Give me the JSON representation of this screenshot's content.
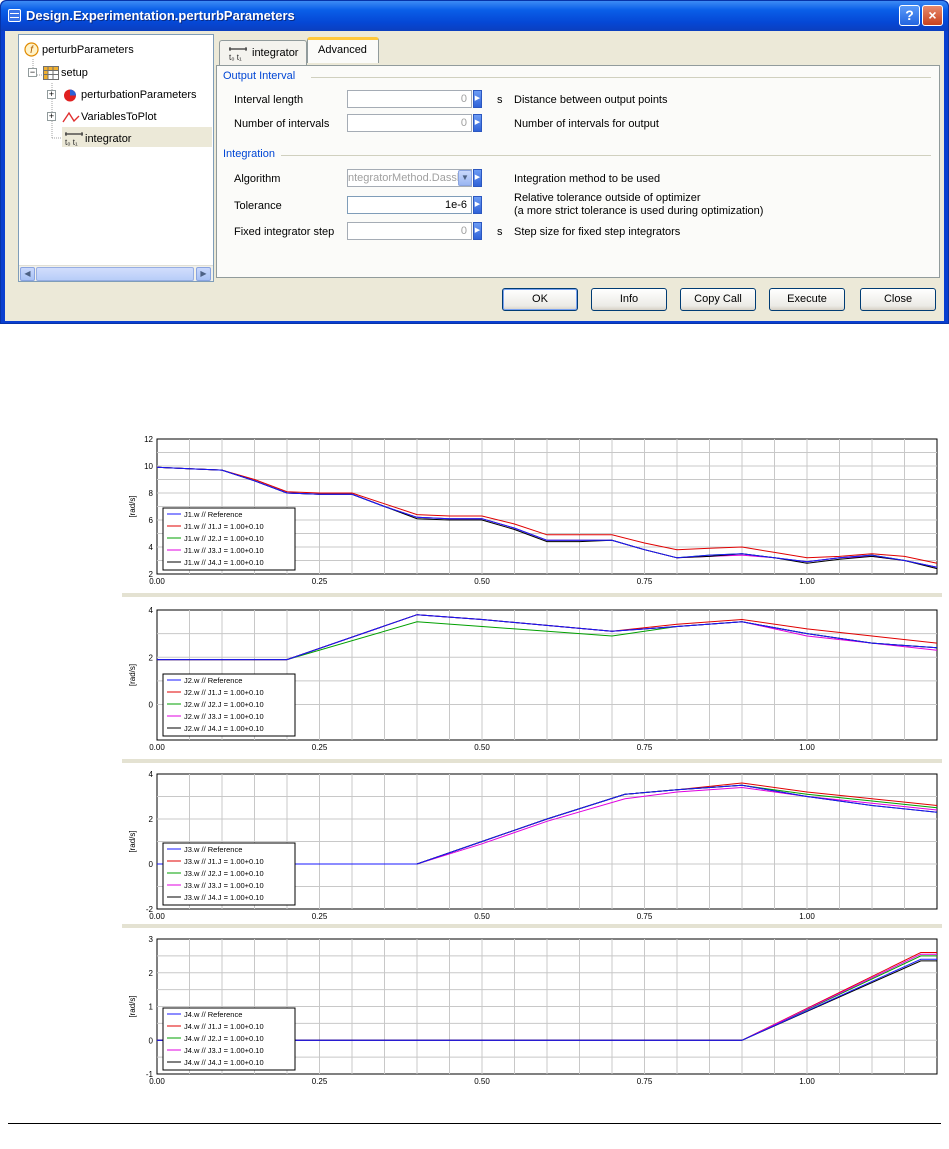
{
  "window": {
    "title": "Design.Experimentation.perturbParameters",
    "help_label": "?",
    "close_label": "×"
  },
  "tree": {
    "items": [
      {
        "label": "perturbParameters",
        "icon": "function-icon"
      },
      {
        "label": "setup",
        "icon": "table-icon"
      },
      {
        "label": "perturbationParameters",
        "icon": "pie-icon"
      },
      {
        "label": "VariablesToPlot",
        "icon": "curve-icon"
      },
      {
        "label": "integrator",
        "icon": "integrator-icon"
      }
    ]
  },
  "tabs": [
    {
      "label": "integrator"
    },
    {
      "label": "Advanced"
    }
  ],
  "output_interval": {
    "heading": "Output Interval",
    "interval_length": {
      "label": "Interval length",
      "value": "0",
      "unit": "s",
      "desc": "Distance between output points"
    },
    "number_of_intervals": {
      "label": "Number of intervals",
      "value": "0",
      "desc": "Number of intervals for output"
    }
  },
  "integration": {
    "heading": "Integration",
    "algorithm": {
      "label": "Algorithm",
      "value": "ntegratorMethod.Dassl",
      "desc": "Integration method to be used"
    },
    "tolerance": {
      "label": "Tolerance",
      "value": "1e-6",
      "desc_1": "Relative tolerance outside of optimizer",
      "desc_2": "(a more strict tolerance is used during optimization)"
    },
    "fixed_step": {
      "label": "Fixed integrator step",
      "value": "0",
      "unit": "s",
      "desc": "Step size for fixed step integrators"
    }
  },
  "buttons": {
    "ok": "OK",
    "info": "Info",
    "copy_call": "Copy Call",
    "execute": "Execute",
    "close": "Close"
  },
  "colors": {
    "reference": "#1a1aff",
    "j1": "#e00000",
    "j2": "#00a000",
    "j3": "#e000e0",
    "j4": "#000000"
  },
  "chart_data": [
    {
      "type": "line",
      "ylabel": "[rad/s]",
      "ylim": [
        2,
        12
      ],
      "yticks": [
        "12",
        "10",
        "8",
        "6",
        "4",
        "2"
      ],
      "xlim": [
        0,
        1.2
      ],
      "xticks": [
        "0.00",
        "0.25",
        "0.50",
        "0.75",
        "1.00"
      ],
      "x": [
        0,
        0.05,
        0.1,
        0.15,
        0.2,
        0.25,
        0.3,
        0.35,
        0.4,
        0.45,
        0.5,
        0.55,
        0.6,
        0.65,
        0.7,
        0.75,
        0.8,
        0.85,
        0.9,
        0.95,
        1.0,
        1.05,
        1.1,
        1.15,
        1.2
      ],
      "series": [
        {
          "name": "J1.w // Reference",
          "values": [
            9.9,
            9.8,
            9.7,
            8.9,
            8.0,
            7.9,
            7.9,
            7.0,
            6.2,
            6.1,
            6.1,
            5.4,
            4.5,
            4.5,
            4.5,
            3.8,
            3.2,
            3.4,
            3.5,
            3.2,
            2.9,
            3.2,
            3.4,
            3.0,
            2.5
          ]
        },
        {
          "name": "J1.w // J1.J = 1.00+0.10",
          "values": [
            9.9,
            9.8,
            9.7,
            9.0,
            8.1,
            8.0,
            8.0,
            7.2,
            6.4,
            6.3,
            6.3,
            5.7,
            4.9,
            4.9,
            4.9,
            4.3,
            3.8,
            3.9,
            4.0,
            3.6,
            3.2,
            3.3,
            3.5,
            3.3,
            2.8
          ]
        },
        {
          "name": "J1.w // J2.J = 1.00+0.10",
          "values": [
            9.9,
            9.8,
            9.7,
            8.9,
            8.0,
            7.9,
            7.9,
            7.0,
            6.2,
            6.1,
            6.1,
            5.4,
            4.5,
            4.5,
            4.5,
            3.8,
            3.2,
            3.4,
            3.5,
            3.2,
            2.9,
            3.2,
            3.4,
            3.0,
            2.5
          ]
        },
        {
          "name": "J1.w // J3.J = 1.00+0.10",
          "values": [
            9.9,
            9.8,
            9.7,
            8.9,
            8.0,
            7.9,
            7.9,
            7.0,
            6.2,
            6.1,
            6.1,
            5.4,
            4.5,
            4.5,
            4.5,
            3.8,
            3.2,
            3.3,
            3.4,
            3.2,
            2.9,
            3.2,
            3.3,
            3.0,
            2.5
          ]
        },
        {
          "name": "J1.w // J4.J = 1.00+0.10",
          "values": [
            9.9,
            9.8,
            9.7,
            8.9,
            8.0,
            7.9,
            7.9,
            7.0,
            6.1,
            6.0,
            6.0,
            5.3,
            4.4,
            4.4,
            4.5,
            3.8,
            3.2,
            3.3,
            3.5,
            3.2,
            2.8,
            3.1,
            3.3,
            3.0,
            2.4
          ]
        }
      ],
      "legend": "bottom-left",
      "grid": true
    },
    {
      "type": "line",
      "ylabel": "[rad/s]",
      "ylim": [
        -1.5,
        4
      ],
      "yticks": [
        "4",
        "2",
        "0"
      ],
      "ytick_values": [
        4,
        2,
        0
      ],
      "xlim": [
        0,
        1.2
      ],
      "xticks": [
        "0.00",
        "0.25",
        "0.50",
        "0.75",
        "1.00"
      ],
      "x": [
        0,
        0.2,
        0.4,
        0.5,
        0.7,
        0.8,
        0.9,
        1.0,
        1.1,
        1.2
      ],
      "series": [
        {
          "name": "J2.w // Reference",
          "values": [
            1.9,
            1.9,
            3.8,
            3.6,
            3.1,
            3.3,
            3.5,
            3.0,
            2.6,
            2.4
          ]
        },
        {
          "name": "J2.w // J1.J = 1.00+0.10",
          "values": [
            1.9,
            1.9,
            3.8,
            3.6,
            3.1,
            3.4,
            3.6,
            3.2,
            2.9,
            2.6
          ]
        },
        {
          "name": "J2.w // J2.J = 1.00+0.10",
          "values": [
            1.9,
            1.9,
            3.5,
            3.3,
            2.9,
            3.3,
            3.5,
            3.0,
            2.6,
            2.4
          ]
        },
        {
          "name": "J2.w // J3.J = 1.00+0.10",
          "values": [
            1.9,
            1.9,
            3.8,
            3.6,
            3.1,
            3.3,
            3.5,
            2.9,
            2.6,
            2.3
          ]
        },
        {
          "name": "J2.w // J4.J = 1.00+0.10",
          "values": [
            1.9,
            1.9,
            3.8,
            3.6,
            3.1,
            3.3,
            3.5,
            3.0,
            2.6,
            2.4
          ]
        }
      ],
      "legend": "bottom-left",
      "grid": true
    },
    {
      "type": "line",
      "ylabel": "[rad/s]",
      "ylim": [
        -2,
        4
      ],
      "yticks": [
        "4",
        "2",
        "0",
        "-2"
      ],
      "xlim": [
        0,
        1.2
      ],
      "xticks": [
        "0.00",
        "0.25",
        "0.50",
        "0.75",
        "1.00"
      ],
      "x": [
        0,
        0.2,
        0.4,
        0.5,
        0.6,
        0.72,
        0.8,
        0.9,
        1.0,
        1.1,
        1.2
      ],
      "series": [
        {
          "name": "J3.w // Reference",
          "values": [
            0,
            0,
            0,
            1.0,
            2.0,
            3.1,
            3.3,
            3.5,
            3.0,
            2.6,
            2.3
          ]
        },
        {
          "name": "J3.w // J1.J = 1.00+0.10",
          "values": [
            0,
            0,
            0,
            1.0,
            2.0,
            3.1,
            3.3,
            3.6,
            3.2,
            2.9,
            2.6
          ]
        },
        {
          "name": "J3.w // J2.J = 1.00+0.10",
          "values": [
            0,
            0,
            0,
            1.0,
            2.0,
            3.1,
            3.3,
            3.5,
            3.1,
            2.8,
            2.5
          ]
        },
        {
          "name": "J3.w // J3.J = 1.00+0.10",
          "values": [
            0,
            0,
            0,
            0.9,
            1.9,
            2.9,
            3.2,
            3.4,
            3.0,
            2.7,
            2.4
          ]
        },
        {
          "name": "J3.w // J4.J = 1.00+0.10",
          "values": [
            0,
            0,
            0,
            1.0,
            2.0,
            3.1,
            3.3,
            3.5,
            3.0,
            2.6,
            2.3
          ]
        }
      ],
      "legend": "bottom-left",
      "grid": true
    },
    {
      "type": "line",
      "ylabel": "[rad/s]",
      "ylim": [
        -1,
        3
      ],
      "yticks": [
        "3",
        "2",
        "1",
        "0",
        "-1"
      ],
      "xlim": [
        0,
        1.2
      ],
      "xticks": [
        "0.00",
        "0.25",
        "0.50",
        "0.75",
        "1.00"
      ],
      "x": [
        0,
        0.9,
        1.175,
        1.2
      ],
      "series": [
        {
          "name": "J4.w // Reference",
          "values": [
            0,
            0,
            2.4,
            2.4
          ]
        },
        {
          "name": "J4.w // J1.J = 1.00+0.10",
          "values": [
            0,
            0,
            2.6,
            2.6
          ]
        },
        {
          "name": "J4.w // J2.J = 1.00+0.10",
          "values": [
            0,
            0,
            2.5,
            2.5
          ]
        },
        {
          "name": "J4.w // J3.J = 1.00+0.10",
          "values": [
            0,
            0,
            2.55,
            2.55
          ]
        },
        {
          "name": "J4.w // J4.J = 1.00+0.10",
          "values": [
            0,
            0,
            2.35,
            2.35
          ]
        }
      ],
      "legend": "bottom-left",
      "grid": true
    }
  ]
}
